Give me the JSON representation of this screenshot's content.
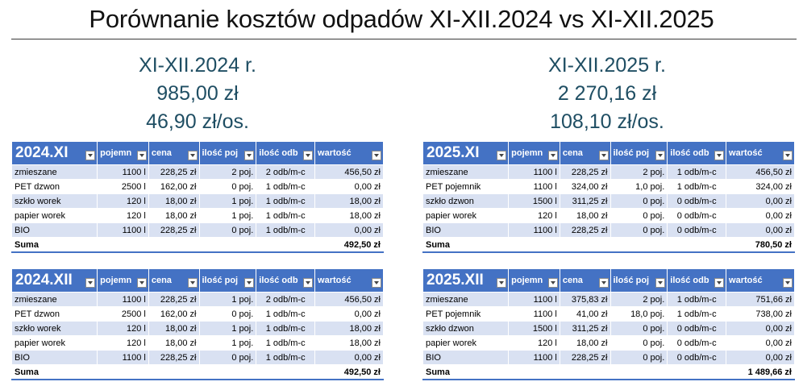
{
  "title": "Porównanie kosztów odpadów XI-XII.2024 vs XI-XII.2025",
  "summary_left": {
    "period": "XI-XII.2024 r.",
    "total": "985,00 zł",
    "per_person": "46,90 zł/os."
  },
  "summary_right": {
    "period": "XI-XII.2025 r.",
    "total": "2 270,16 zł",
    "per_person": "108,10 zł/os."
  },
  "tables": [
    {
      "headers": [
        "2024.XI",
        "pojemn",
        "cena",
        "ilość poj",
        "ilość odb",
        "wartość"
      ],
      "rows": [
        [
          "zmieszane",
          "1100 l",
          "228,25 zł",
          "2 poj.",
          "2 odb/m-c",
          "456,50 zł"
        ],
        [
          "PET dzwon",
          "2500 l",
          "162,00 zł",
          "0 poj.",
          "1 odb/m-c",
          "0,00 zł"
        ],
        [
          "szkło worek",
          "120 l",
          "18,00 zł",
          "1 poj.",
          "1 odb/m-c",
          "18,00 zł"
        ],
        [
          "papier worek",
          "120 l",
          "18,00 zł",
          "1 poj.",
          "1 odb/m-c",
          "18,00 zł"
        ],
        [
          "BIO",
          "1100 l",
          "228,25 zł",
          "0 poj.",
          "1 odb/m-c",
          "0,00 zł"
        ]
      ],
      "total_label": "Suma",
      "total_value": "492,50 zł"
    },
    {
      "headers": [
        "2025.XI",
        "pojemn",
        "cena",
        "ilość poj",
        "ilość odb",
        "wartość"
      ],
      "rows": [
        [
          "zmieszane",
          "1100 l",
          "228,25 zł",
          "2 poj.",
          "1 odb/m-c",
          "456,50 zł"
        ],
        [
          "PET pojemnik",
          "1100 l",
          "324,00 zł",
          "1,0 poj.",
          "1 odb/m-c",
          "324,00 zł"
        ],
        [
          "szkło dzwon",
          "1500 l",
          "311,25 zł",
          "0 poj.",
          "0 odb/m-c",
          "0,00 zł"
        ],
        [
          "papier worek",
          "120 l",
          "18,00 zł",
          "0 poj.",
          "0 odb/m-c",
          "0,00 zł"
        ],
        [
          "BIO",
          "1100 l",
          "228,25 zł",
          "0 poj.",
          "0 odb/m-c",
          "0,00 zł"
        ]
      ],
      "total_label": "Suma",
      "total_value": "780,50 zł"
    },
    {
      "headers": [
        "2024.XII",
        "pojemn",
        "cena",
        "ilość poj",
        "ilość odb",
        "wartość"
      ],
      "rows": [
        [
          "zmieszane",
          "1100 l",
          "228,25 zł",
          "1 poj.",
          "2 odb/m-c",
          "456,50 zł"
        ],
        [
          "PET dzwon",
          "2500 l",
          "162,00 zł",
          "0 poj.",
          "1 odb/m-c",
          "0,00 zł"
        ],
        [
          "szkło worek",
          "120 l",
          "18,00 zł",
          "1 poj.",
          "1 odb/m-c",
          "18,00 zł"
        ],
        [
          "papier worek",
          "120 l",
          "18,00 zł",
          "1 poj.",
          "1 odb/m-c",
          "18,00 zł"
        ],
        [
          "BIO",
          "1100 l",
          "228,25 zł",
          "0 poj.",
          "1 odb/m-c",
          "0,00 zł"
        ]
      ],
      "total_label": "Suma",
      "total_value": "492,50 zł"
    },
    {
      "headers": [
        "2025.XII",
        "pojemn",
        "cena",
        "ilość poj",
        "ilość odb",
        "wartość"
      ],
      "rows": [
        [
          "zmieszane",
          "1100 l",
          "375,83 zł",
          "2 poj.",
          "1 odb/m-c",
          "751,66 zł"
        ],
        [
          "PET pojemnik",
          "1100 l",
          "41,00 zł",
          "18,0 poj.",
          "1 odb/m-c",
          "738,00 zł"
        ],
        [
          "szkło dzwon",
          "1500 l",
          "311,25 zł",
          "0 poj.",
          "0 odb/m-c",
          "0,00 zł"
        ],
        [
          "papier worek",
          "120 l",
          "18,00 zł",
          "0 poj.",
          "0 odb/m-c",
          "0,00 zł"
        ],
        [
          "BIO",
          "1100 l",
          "228,25 zł",
          "0 poj.",
          "0 odb/m-c",
          "0,00 zł"
        ]
      ],
      "total_label": "Suma",
      "total_value": "1 489,66 zł"
    }
  ]
}
